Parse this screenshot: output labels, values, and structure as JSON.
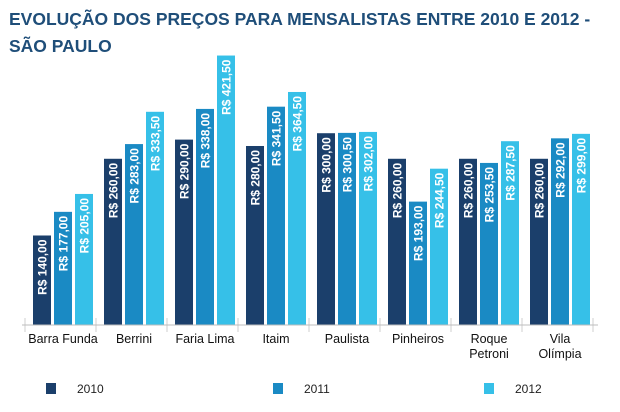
{
  "chart_data": {
    "type": "bar",
    "title_line1": "EVOLUÇÃO DOS PREÇOS PARA MENSALISTAS ENTRE 2010 E 2012 -",
    "title_line2": "SÃO PAULO",
    "categories": [
      [
        "Barra Funda"
      ],
      [
        "Berrini"
      ],
      [
        "Faria Lima"
      ],
      [
        "Itaim"
      ],
      [
        "Paulista"
      ],
      [
        "Pinheiros"
      ],
      [
        "Roque",
        "Petroni"
      ],
      [
        "Vila",
        "Olímpia"
      ]
    ],
    "series": [
      {
        "name": "2010",
        "color": "#1b3f6b",
        "values": [
          140.0,
          260.0,
          290.0,
          280.0,
          300.0,
          260.0,
          260.0,
          260.0
        ],
        "labels": [
          "R$ 140,00",
          "R$ 260,00",
          "R$ 290,00",
          "R$ 280,00",
          "R$ 300,00",
          "R$ 260,00",
          "R$ 260,00",
          "R$ 260,00"
        ]
      },
      {
        "name": "2011",
        "color": "#1a8ac4",
        "values": [
          177.0,
          283.0,
          338.0,
          341.5,
          300.5,
          193.0,
          253.5,
          292.0
        ],
        "labels": [
          "R$ 177,00",
          "R$ 283,00",
          "R$ 338,00",
          "R$ 341,50",
          "R$ 300,50",
          "R$ 193,00",
          "R$ 253,50",
          "R$ 292,00"
        ]
      },
      {
        "name": "2012",
        "color": "#36c0e8",
        "values": [
          205.0,
          333.5,
          421.5,
          364.5,
          302.0,
          244.5,
          287.5,
          299.0
        ],
        "labels": [
          "R$ 205,00",
          "R$ 333,50",
          "R$ 421,50",
          "R$ 364,50",
          "R$ 302,00",
          "R$ 244,50",
          "R$ 287,50",
          "R$ 299,00"
        ]
      }
    ],
    "ylim": [
      0,
      430
    ],
    "grid": false,
    "legend_position": "bottom"
  }
}
